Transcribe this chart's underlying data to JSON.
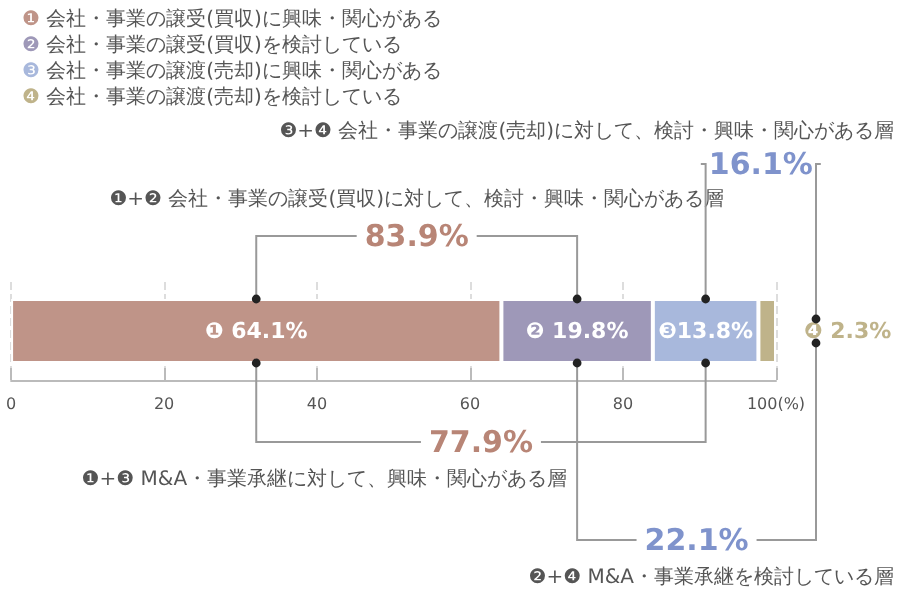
{
  "chart_data": {
    "type": "bar",
    "orientation": "horizontal",
    "stacked": true,
    "categories": [
      null
    ],
    "series": [
      {
        "name": "❶ 会社・事業の譲受(買収)に興味・関心がある",
        "color": "#bf9488",
        "values": [
          64.1
        ],
        "value_labels": [
          "❶ 64.1%"
        ]
      },
      {
        "name": "❷ 会社・事業の譲受(買収)を検討している",
        "color": "#9e98b8",
        "values": [
          19.8
        ],
        "value_labels": [
          "❷ 19.8%"
        ]
      },
      {
        "name": "❸ 会社・事業の譲渡(売却)に興味・関心がある",
        "color": "#a8b8dc",
        "values": [
          13.8
        ],
        "value_labels": [
          "❸13.8%"
        ]
      },
      {
        "name": "❹ 会社・事業の譲渡(売却)を検討している",
        "color": "#bfb38a",
        "values": [
          2.3
        ],
        "value_labels": [
          "❹ 2.3%"
        ]
      }
    ],
    "xlim": [
      0,
      100
    ],
    "xticks": [
      0,
      20,
      40,
      60,
      80,
      {
        "value": 100,
        "label": "100(%)"
      }
    ],
    "grid": "x",
    "legend": "top left",
    "annotations": [
      "❶+❷ 会社・事業の譲受(買収)に対して、検討・興味・関心がある層",
      "83.9%",
      "❸+❹ 会社・事業の譲渡(売却)に対して、検討・興味・関心がある層",
      "16.1%",
      "❶+❸ M&A・事業承継に対して、興味・関心がある層",
      "77.9%",
      "❷+❹ M&A・事業承継を検討している層",
      "22.1%"
    ]
  }
}
